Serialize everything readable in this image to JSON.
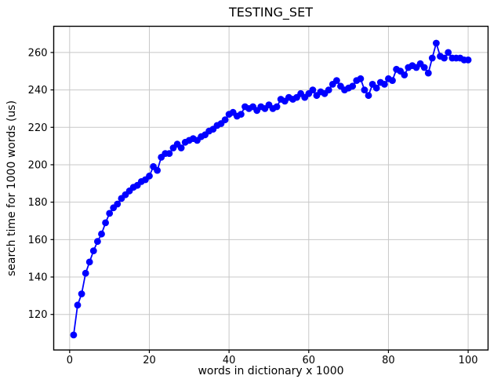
{
  "chart_data": {
    "type": "line",
    "title": "TESTING_SET",
    "xlabel": "words in dictionary x 1000",
    "ylabel": "search time for 1000 words (us)",
    "legend": null,
    "grid": true,
    "line_color": "#0000ff",
    "marker": "o",
    "background_color": "#ffffff",
    "grid_color": "#c8c8c8",
    "spine_color": "#000000",
    "xticks": [
      0,
      20,
      40,
      60,
      80,
      100
    ],
    "yticks": [
      120,
      140,
      160,
      180,
      200,
      220,
      240,
      260
    ],
    "xlim": [
      -4.0,
      105.0
    ],
    "ylim": [
      101.0,
      274.0
    ],
    "x": [
      1,
      2,
      3,
      4,
      5,
      6,
      7,
      8,
      9,
      10,
      11,
      12,
      13,
      14,
      15,
      16,
      17,
      18,
      19,
      20,
      21,
      22,
      23,
      24,
      25,
      26,
      27,
      28,
      29,
      30,
      31,
      32,
      33,
      34,
      35,
      36,
      37,
      38,
      39,
      40,
      41,
      42,
      43,
      44,
      45,
      46,
      47,
      48,
      49,
      50,
      51,
      52,
      53,
      54,
      55,
      56,
      57,
      58,
      59,
      60,
      61,
      62,
      63,
      64,
      65,
      66,
      67,
      68,
      69,
      70,
      71,
      72,
      73,
      74,
      75,
      76,
      77,
      78,
      79,
      80,
      81,
      82,
      83,
      84,
      85,
      86,
      87,
      88,
      89,
      90,
      91,
      92,
      93,
      94,
      95,
      96,
      97,
      98,
      99,
      100
    ],
    "y": [
      109,
      125,
      131,
      142,
      148,
      154,
      159,
      163,
      169,
      174,
      177,
      179,
      182,
      184,
      186,
      188,
      189,
      191,
      192,
      194,
      199,
      197,
      204,
      206,
      206,
      209,
      211,
      209,
      212,
      213,
      214,
      213,
      215,
      216,
      218,
      219,
      221,
      222,
      224,
      227,
      228,
      226,
      227,
      231,
      230,
      231,
      229,
      231,
      230,
      232,
      230,
      231,
      235,
      234,
      236,
      235,
      236,
      238,
      236,
      238,
      240,
      237,
      239,
      238,
      240,
      243,
      245,
      242,
      240,
      241,
      242,
      245,
      246,
      240,
      237,
      243,
      241,
      244,
      243,
      246,
      245,
      251,
      250,
      248,
      252,
      253,
      252,
      254,
      252,
      249,
      257,
      265,
      258,
      257,
      260,
      257,
      257,
      257,
      256,
      256
    ]
  }
}
